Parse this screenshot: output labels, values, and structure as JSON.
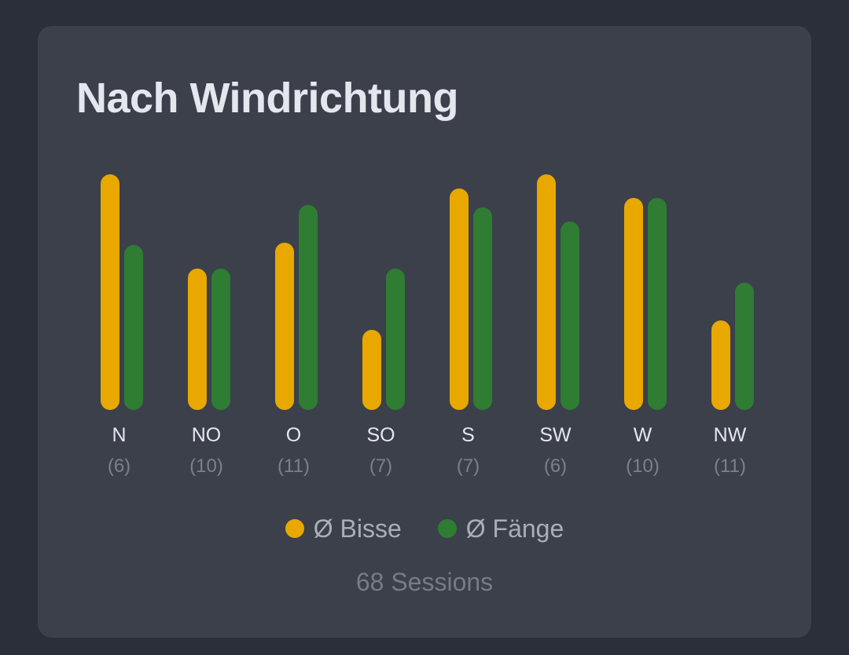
{
  "card": {
    "title": "Nach Windrichtung",
    "sessions_label": "68 Sessions"
  },
  "colors": {
    "bisse": "#e8a800",
    "faenge": "#2e7d32",
    "card_bg": "#3b404b",
    "page_bg": "#2b2f3a"
  },
  "legend": [
    {
      "label": "Ø Bisse",
      "color": "#e8a800"
    },
    {
      "label": "Ø Fänge",
      "color": "#2e7d32"
    }
  ],
  "chart_data": {
    "type": "bar",
    "title": "Nach Windrichtung",
    "xlabel": "",
    "ylabel": "",
    "grid": false,
    "legend_position": "bottom",
    "categories": [
      "N",
      "NO",
      "O",
      "SO",
      "S",
      "SW",
      "W",
      "NW"
    ],
    "session_counts": [
      "(6)",
      "(10)",
      "(11)",
      "(7)",
      "(7)",
      "(6)",
      "(10)",
      "(11)"
    ],
    "note": "No y-axis shown; values are relative bar heights normalized to max = 100",
    "series": [
      {
        "name": "Ø Bisse",
        "color": "#e8a800",
        "values": [
          100,
          60,
          71,
          34,
          94,
          100,
          90,
          38
        ]
      },
      {
        "name": "Ø Fänge",
        "color": "#2e7d32",
        "values": [
          70,
          60,
          87,
          60,
          86,
          80,
          90,
          54
        ]
      }
    ],
    "ylim": [
      0,
      100
    ],
    "footer": "68 Sessions"
  }
}
